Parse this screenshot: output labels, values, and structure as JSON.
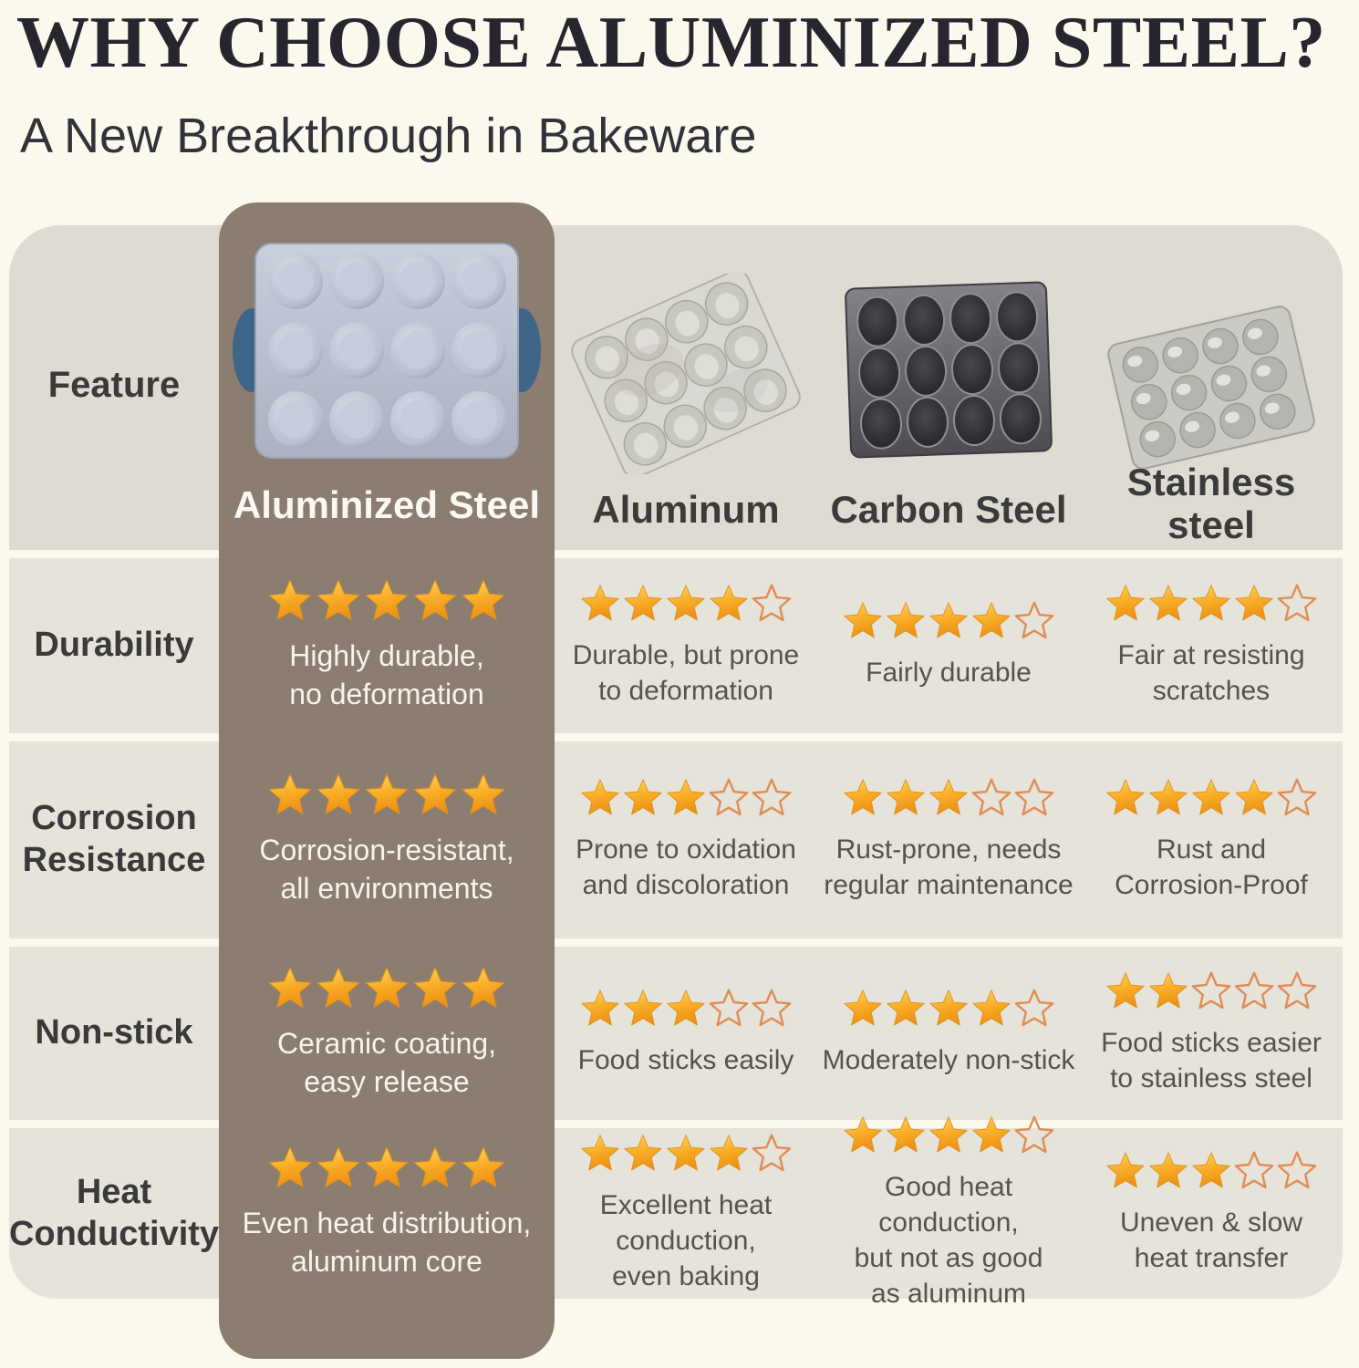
{
  "colors": {
    "page_bg": "#fbf9ee",
    "header_band": "#dddbd2",
    "row_band": "#e5e3da",
    "highlight_column": "#8b7d70",
    "star_gold": "#f6a31f",
    "star_outline": "#e08d55",
    "title_text": "#27262e",
    "body_text": "#56534f",
    "highlight_text": "#f8f4ec",
    "grip_blue": "#3f6588"
  },
  "icons": {
    "star_filled": "★",
    "star_outline": "☆"
  },
  "chart_data": {
    "type": "table",
    "title": "WHY CHOOSE ALUMINIZED STEEL?",
    "subtitle": "A New Breakthrough in Bakeware",
    "feature_column_header": "Feature",
    "rating_max": 5,
    "columns": [
      {
        "label": "Aluminized Steel",
        "display": "Aluminized Steel",
        "highlighted": true,
        "image": "aluminized-steel-muffin-pan"
      },
      {
        "label": "Aluminum",
        "display": "Aluminum",
        "highlighted": false,
        "image": "aluminum-muffin-pan"
      },
      {
        "label": "Carbon Steel",
        "display": "Carbon Steel",
        "highlighted": false,
        "image": "carbon-steel-muffin-pan"
      },
      {
        "label": "Stainless steel",
        "display": "Stainless\nsteel",
        "highlighted": false,
        "image": "stainless-steel-muffin-pan"
      }
    ],
    "rows": [
      {
        "feature": "Durability",
        "feature_display": "Durability",
        "cells": [
          {
            "stars": 5,
            "text": "Highly durable,\nno deformation"
          },
          {
            "stars": 4,
            "text": "Durable, but prone\nto deformation"
          },
          {
            "stars": 4,
            "text": "Fairly durable"
          },
          {
            "stars": 4,
            "text": "Fair at resisting\nscratches"
          }
        ]
      },
      {
        "feature": "Corrosion Resistance",
        "feature_display": "Corrosion\nResistance",
        "cells": [
          {
            "stars": 5,
            "text": "Corrosion-resistant,\nall environments"
          },
          {
            "stars": 3,
            "text": "Prone to oxidation\nand discoloration"
          },
          {
            "stars": 3,
            "text": "Rust-prone, needs\nregular maintenance"
          },
          {
            "stars": 4,
            "text": "Rust and\nCorrosion-Proof"
          }
        ]
      },
      {
        "feature": "Non-stick",
        "feature_display": "Non-stick",
        "cells": [
          {
            "stars": 5,
            "text": "Ceramic coating,\neasy release"
          },
          {
            "stars": 3,
            "text": "Food sticks easily"
          },
          {
            "stars": 4,
            "text": "Moderately non-stick"
          },
          {
            "stars": 2,
            "text": "Food sticks easier\nto stainless steel"
          }
        ]
      },
      {
        "feature": "Heat Conductivity",
        "feature_display": "Heat\nConductivity",
        "cells": [
          {
            "stars": 5,
            "text": "Even heat distribution,\naluminum core"
          },
          {
            "stars": 4,
            "text": "Excellent heat\nconduction,\neven baking"
          },
          {
            "stars": 4,
            "text": "Good heat conduction,\nbut not as good\nas aluminum"
          },
          {
            "stars": 3,
            "text": "Uneven & slow\nheat transfer"
          }
        ]
      }
    ]
  }
}
